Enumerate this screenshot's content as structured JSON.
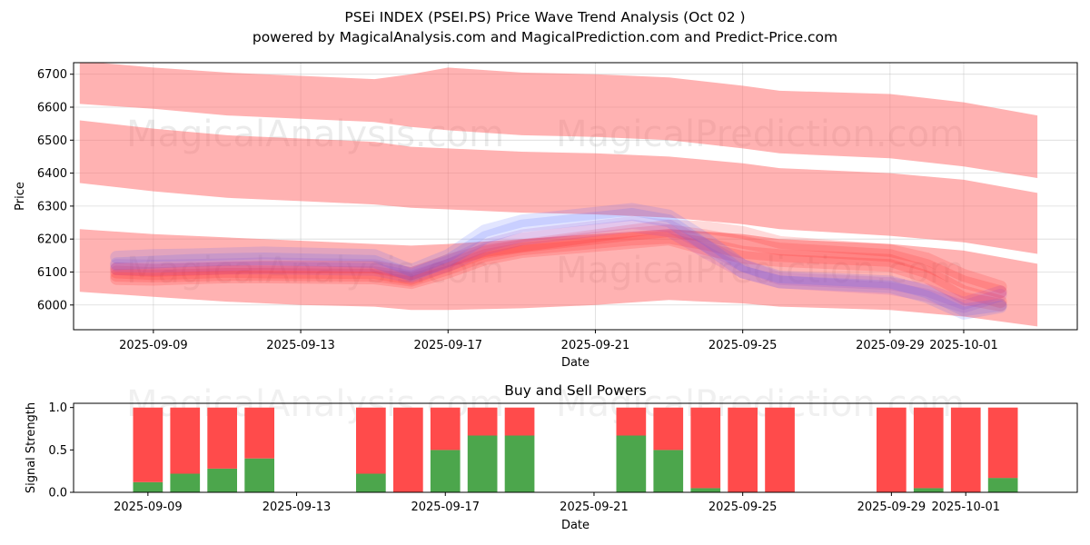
{
  "title_line1": "PSEi INDEX (PSEI.PS) Price Wave Trend Analysis (Oct 02 )",
  "title_line2": "powered by MagicalAnalysis.com and MagicalPrediction.com and Predict-Price.com",
  "watermarks": [
    "MagicalAnalysis.com",
    "MagicalPrediction.com"
  ],
  "colors": {
    "band": "#ff6b6b",
    "price_red": "#ff1a1a",
    "price_blue": "#4a5cff",
    "buy": "#4ca64c",
    "sell": "#ff4b4b"
  },
  "chart_data": [
    {
      "type": "line",
      "title": "",
      "xlabel": "Date",
      "ylabel": "Price",
      "ylim": [
        5925,
        6735
      ],
      "xlim": [
        "2025-09-06T20:00",
        "2025-10-04T02:00"
      ],
      "grid": true,
      "xticks": [
        "2025-09-09",
        "2025-09-13",
        "2025-09-17",
        "2025-09-21",
        "2025-09-25",
        "2025-09-29",
        "2025-10-01"
      ],
      "yticks": [
        6000,
        6100,
        6200,
        6300,
        6400,
        6500,
        6600,
        6700
      ],
      "band_dates": [
        "2025-09-07",
        "2025-09-09",
        "2025-09-11",
        "2025-09-13",
        "2025-09-15",
        "2025-09-16",
        "2025-09-17",
        "2025-09-19",
        "2025-09-21",
        "2025-09-23",
        "2025-09-25",
        "2025-09-26",
        "2025-09-29",
        "2025-10-01",
        "2025-10-03"
      ],
      "bands": [
        {
          "name": "upper-wave-band",
          "upper": [
            6740,
            6720,
            6705,
            6695,
            6685,
            6700,
            6720,
            6705,
            6700,
            6690,
            6665,
            6650,
            6640,
            6615,
            6575
          ],
          "lower": [
            6610,
            6595,
            6575,
            6565,
            6555,
            6540,
            6530,
            6515,
            6510,
            6500,
            6475,
            6460,
            6445,
            6420,
            6385
          ]
        },
        {
          "name": "middle-wave-band",
          "upper": [
            6560,
            6535,
            6515,
            6505,
            6495,
            6480,
            6475,
            6465,
            6460,
            6450,
            6430,
            6415,
            6400,
            6380,
            6340
          ],
          "lower": [
            6370,
            6345,
            6325,
            6315,
            6305,
            6295,
            6290,
            6280,
            6275,
            6265,
            6245,
            6230,
            6210,
            6190,
            6155
          ]
        },
        {
          "name": "lower-wave-band",
          "upper": [
            6230,
            6215,
            6205,
            6195,
            6185,
            6180,
            6185,
            6200,
            6215,
            6230,
            6215,
            6200,
            6185,
            6165,
            6125
          ],
          "lower": [
            6040,
            6025,
            6010,
            6000,
            5995,
            5985,
            5985,
            5990,
            6000,
            6015,
            6005,
            5995,
            5985,
            5965,
            5935
          ]
        }
      ],
      "series_dates": [
        "2025-09-08",
        "2025-09-09",
        "2025-09-10",
        "2025-09-11",
        "2025-09-12",
        "2025-09-15",
        "2025-09-16",
        "2025-09-17",
        "2025-09-18",
        "2025-09-19",
        "2025-09-22",
        "2025-09-23",
        "2025-09-24",
        "2025-09-25",
        "2025-09-26",
        "2025-09-29",
        "2025-09-30",
        "2025-10-01",
        "2025-10-02"
      ],
      "series": [
        {
          "name": "trend-red-1",
          "color": "#ff1a1a",
          "values": [
            6110,
            6105,
            6108,
            6112,
            6115,
            6115,
            6095,
            6135,
            6165,
            6180,
            6225,
            6240,
            6235,
            6220,
            6190,
            6165,
            6140,
            6090,
            6055
          ]
        },
        {
          "name": "trend-red-2",
          "color": "#ff1a1a",
          "values": [
            6100,
            6095,
            6098,
            6102,
            6100,
            6098,
            6080,
            6120,
            6160,
            6178,
            6215,
            6225,
            6210,
            6190,
            6170,
            6150,
            6120,
            6070,
            6040
          ]
        },
        {
          "name": "trend-red-3",
          "color": "#ff1a1a",
          "values": [
            6090,
            6088,
            6090,
            6093,
            6093,
            6090,
            6075,
            6110,
            6150,
            6170,
            6200,
            6205,
            6185,
            6160,
            6150,
            6135,
            6100,
            6040,
            6010
          ]
        },
        {
          "name": "trend-red-4",
          "color": "#ff1a1a",
          "values": [
            6080,
            6078,
            6082,
            6085,
            6085,
            6082,
            6068,
            6100,
            6140,
            6162,
            6190,
            6200,
            6170,
            6145,
            6135,
            6120,
            6085,
            6020,
            6000
          ]
        },
        {
          "name": "trend-purple-1",
          "color": "#a040c0",
          "values": [
            6120,
            6118,
            6120,
            6122,
            6125,
            6120,
            6095,
            6130,
            6180,
            6210,
            6250,
            6240,
            6180,
            6120,
            6080,
            6065,
            6045,
            6005,
            6040
          ]
        },
        {
          "name": "trend-purple-2",
          "color": "#a040c0",
          "values": [
            6110,
            6108,
            6110,
            6112,
            6112,
            6108,
            6085,
            6120,
            6170,
            6200,
            6240,
            6225,
            6160,
            6100,
            6070,
            6050,
            6030,
            5995,
            6030
          ]
        },
        {
          "name": "trend-blue-1",
          "color": "#4a5cff",
          "values": [
            6145,
            6150,
            6152,
            6155,
            6158,
            6150,
            6105,
            6150,
            6225,
            6255,
            6290,
            6270,
            6200,
            6120,
            6085,
            6070,
            6040,
            5985,
            6000
          ]
        },
        {
          "name": "trend-blue-2",
          "color": "#4a5cff",
          "values": [
            6125,
            6130,
            6135,
            6138,
            6140,
            6132,
            6090,
            6135,
            6205,
            6240,
            6275,
            6255,
            6180,
            6100,
            6070,
            6055,
            6025,
            5975,
            5995
          ]
        }
      ]
    },
    {
      "type": "bar",
      "title": "Buy and Sell Powers",
      "xlabel": "Date",
      "ylabel": "Signal Strength",
      "ylim": [
        0,
        1.05
      ],
      "xlim": [
        "2025-09-07T00:00",
        "2025-10-04T00:00"
      ],
      "yticks": [
        "0.0",
        "0.5",
        "1.0"
      ],
      "xticks": [
        "2025-09-09",
        "2025-09-13",
        "2025-09-17",
        "2025-09-21",
        "2025-09-25",
        "2025-09-29",
        "2025-10-01"
      ],
      "dates": [
        "2025-09-09",
        "2025-09-10",
        "2025-09-11",
        "2025-09-12",
        "2025-09-15",
        "2025-09-16",
        "2025-09-17",
        "2025-09-18",
        "2025-09-19",
        "2025-09-22",
        "2025-09-23",
        "2025-09-24",
        "2025-09-25",
        "2025-09-26",
        "2025-09-29",
        "2025-09-30",
        "2025-10-01",
        "2025-10-02"
      ],
      "series": [
        {
          "name": "Buy",
          "color": "#4ca64c",
          "values": [
            0.12,
            0.22,
            0.28,
            0.4,
            0.22,
            0.0,
            0.5,
            0.67,
            0.67,
            0.67,
            0.5,
            0.05,
            0.0,
            0.0,
            0.0,
            0.05,
            0.0,
            0.17
          ]
        },
        {
          "name": "Sell",
          "color": "#ff4b4b",
          "values": [
            0.88,
            0.78,
            0.72,
            0.6,
            0.78,
            1.0,
            0.5,
            0.33,
            0.33,
            0.33,
            0.5,
            0.95,
            1.0,
            1.0,
            1.0,
            0.95,
            1.0,
            0.83
          ]
        }
      ]
    }
  ]
}
